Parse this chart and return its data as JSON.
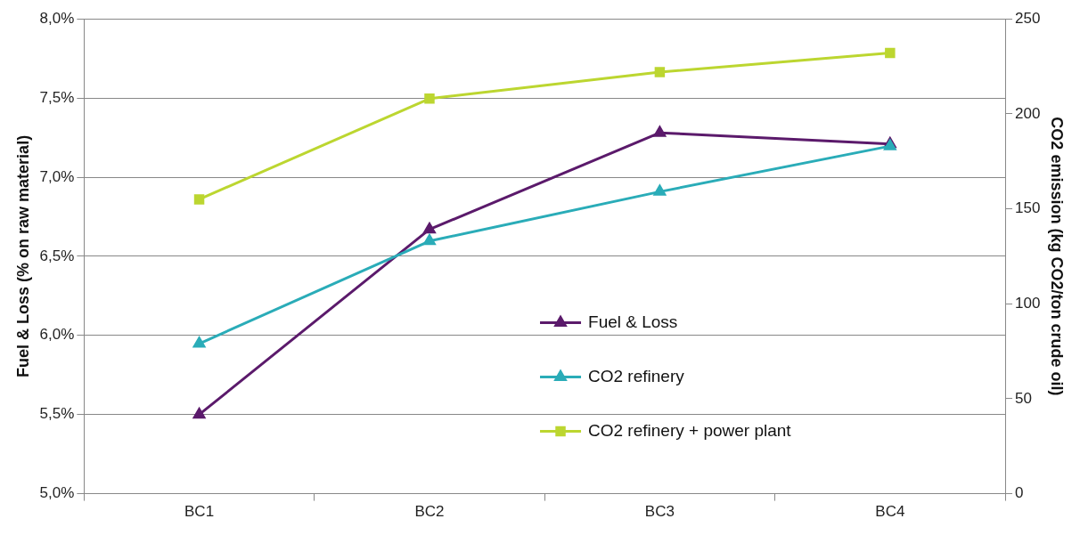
{
  "chart_data": {
    "type": "line",
    "ylabel": "Fuel & Loss (% on raw material)",
    "y2label": "CO2 emission (kg CO2/ton crude oil)",
    "categories": [
      "BC1",
      "BC2",
      "BC3",
      "BC4"
    ],
    "series": [
      {
        "name": "Fuel & Loss",
        "color": "#5b1a6b",
        "values": [
          5.5,
          6.67,
          7.28,
          7.21
        ],
        "marker": "triangle"
      },
      {
        "name": "CO2 refinery",
        "color": "#2aacb8",
        "values": [
          79,
          133,
          159,
          183
        ],
        "axis": "y2",
        "marker": "triangle"
      },
      {
        "name": "CO2 refinery + power plant",
        "color": "#bcd630",
        "values": [
          155,
          208,
          222,
          232
        ],
        "axis": "y2",
        "marker": "square"
      }
    ],
    "ylim": [
      5,
      8
    ],
    "yticks": [
      {
        "value": 5,
        "label": "5,0%"
      },
      {
        "value": 5.5,
        "label": "5,5%"
      },
      {
        "value": 6,
        "label": "6,0%"
      },
      {
        "value": 6.5,
        "label": "6,5%"
      },
      {
        "value": 7,
        "label": "7,0%"
      },
      {
        "value": 7.5,
        "label": "7,5%"
      },
      {
        "value": 8,
        "label": "8,0%"
      }
    ],
    "y2lim": [
      0,
      250
    ],
    "y2ticks": [
      0,
      50,
      100,
      150,
      200,
      250
    ],
    "grid": "y",
    "legend": "bottom right",
    "line_style": "solid"
  }
}
